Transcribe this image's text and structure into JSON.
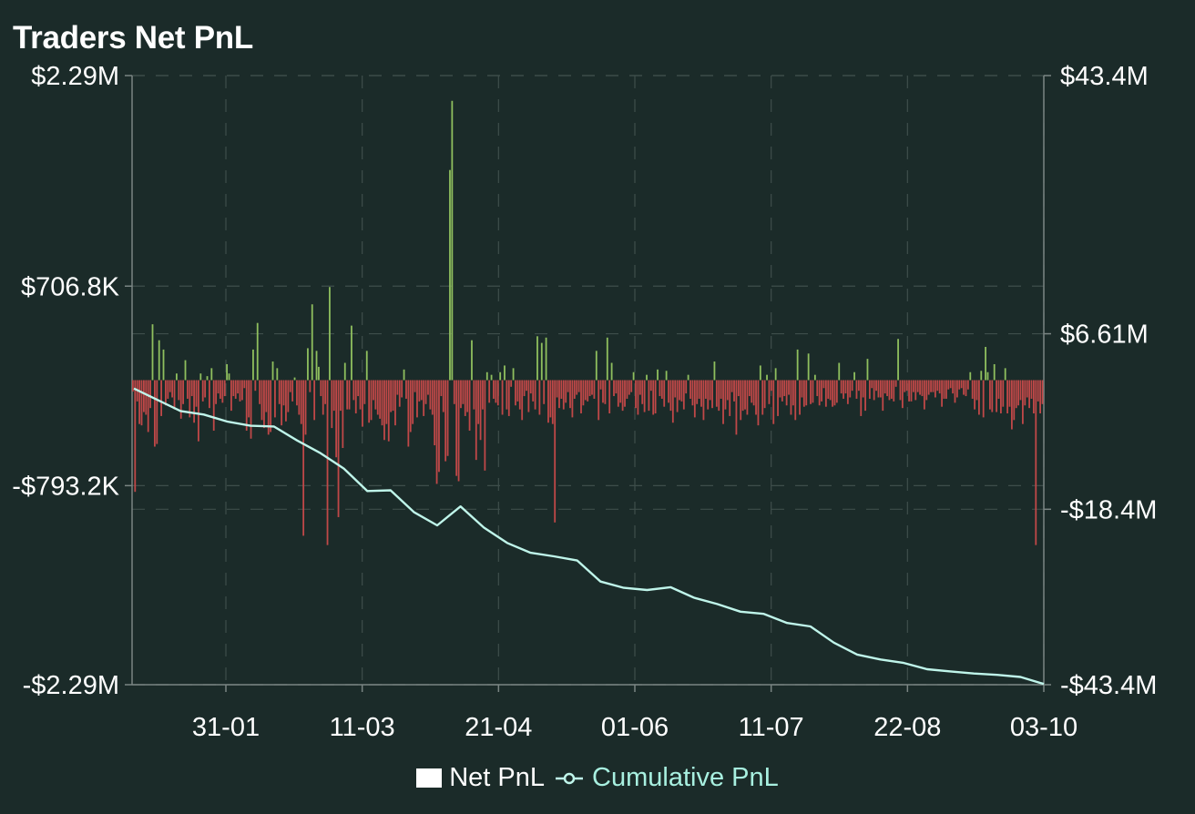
{
  "title": "Traders Net PnL",
  "colors": {
    "background": "#1b2b29",
    "positive_bar": "#8fbf5e",
    "negative_bar": "#c04848",
    "cumulative_line": "#bff5ea",
    "grid": "#3e4e4b",
    "axis": "#7a8583"
  },
  "legend": {
    "net_label": "Net PnL",
    "cumulative_label": "Cumulative PnL"
  },
  "chart_data": {
    "type": "bar",
    "x_ticks": [
      "31-01",
      "11-03",
      "21-04",
      "01-06",
      "11-07",
      "22-08",
      "03-10"
    ],
    "left_axis": {
      "tick_labels": [
        "$2.29M",
        "$706.8K",
        "-$793.2K",
        "-$2.29M"
      ],
      "tick_values": [
        2290000,
        706800,
        -793200,
        -2290000
      ],
      "ylim": [
        -2290000,
        2290000
      ]
    },
    "right_axis": {
      "tick_labels": [
        "$43.4M",
        "$6.61M",
        "-$18.4M",
        "-$43.4M"
      ],
      "tick_values": [
        43400000,
        6610000,
        -18400000,
        -43400000
      ],
      "ylim": [
        -43400000,
        43400000
      ]
    },
    "grid": true,
    "legend_position": "bottom-center",
    "series": [
      {
        "name": "Net PnL",
        "type": "bar",
        "axis": "left",
        "values": [
          -85000,
          -840000,
          -160000,
          -330000,
          -340000,
          -240000,
          -260000,
          -390000,
          -210000,
          420000,
          -500000,
          -480000,
          300000,
          -270000,
          230000,
          -190000,
          -140000,
          -90000,
          -130000,
          -220000,
          50000,
          -150000,
          -290000,
          -180000,
          150000,
          -140000,
          -280000,
          -120000,
          -320000,
          -200000,
          -460000,
          50000,
          -160000,
          -130000,
          30000,
          -210000,
          90000,
          -380000,
          -180000,
          -100000,
          -140000,
          -170000,
          -120000,
          120000,
          50000,
          -230000,
          -120000,
          -140000,
          -100000,
          -160000,
          -150000,
          -60000,
          -380000,
          -280000,
          -440000,
          230000,
          -80000,
          430000,
          -180000,
          -300000,
          -360000,
          -240000,
          -410000,
          -390000,
          140000,
          -280000,
          90000,
          -180000,
          -340000,
          -190000,
          -310000,
          -240000,
          -90000,
          -160000,
          20000,
          -190000,
          -260000,
          -330000,
          -1170000,
          -410000,
          240000,
          -90000,
          570000,
          -300000,
          220000,
          100000,
          -120000,
          -260000,
          -180000,
          -1240000,
          700000,
          -360000,
          -230000,
          -580000,
          -1030000,
          -230000,
          -510000,
          130000,
          -220000,
          -220000,
          410000,
          -150000,
          -250000,
          -120000,
          -220000,
          -350000,
          -180000,
          220000,
          -320000,
          -300000,
          -150000,
          -220000,
          -260000,
          -290000,
          -340000,
          -450000,
          -330000,
          -460000,
          -240000,
          -230000,
          -340000,
          -110000,
          -200000,
          -130000,
          80000,
          -140000,
          -500000,
          -390000,
          -330000,
          -90000,
          -280000,
          -160000,
          -150000,
          -270000,
          -180000,
          -110000,
          -220000,
          -260000,
          -490000,
          -780000,
          -690000,
          -120000,
          -240000,
          -610000,
          -570000,
          1580000,
          2100000,
          -180000,
          -720000,
          -760000,
          -210000,
          -180000,
          -270000,
          -240000,
          -380000,
          300000,
          -220000,
          -600000,
          -330000,
          -450000,
          -220000,
          -680000,
          60000,
          -170000,
          40000,
          -140000,
          -170000,
          -190000,
          60000,
          -260000,
          110000,
          -220000,
          -270000,
          -50000,
          90000,
          -190000,
          -160000,
          -220000,
          -300000,
          -120000,
          -80000,
          -240000,
          -100000,
          -160000,
          -220000,
          330000,
          -260000,
          280000,
          -180000,
          320000,
          -320000,
          -280000,
          -330000,
          -1070000,
          -130000,
          -210000,
          -140000,
          -220000,
          -170000,
          -90000,
          -210000,
          -280000,
          -140000,
          -110000,
          -90000,
          -250000,
          -190000,
          -150000,
          -160000,
          -120000,
          -110000,
          -140000,
          220000,
          -300000,
          -70000,
          -170000,
          -180000,
          320000,
          -250000,
          130000,
          -120000,
          -100000,
          -200000,
          -170000,
          -230000,
          -200000,
          -140000,
          -110000,
          -90000,
          60000,
          -210000,
          -260000,
          -110000,
          -180000,
          -240000,
          40000,
          -230000,
          -80000,
          -260000,
          -250000,
          80000,
          -120000,
          -140000,
          -200000,
          70000,
          -170000,
          -230000,
          -320000,
          -130000,
          -240000,
          -150000,
          -160000,
          -220000,
          -100000,
          40000,
          -140000,
          -190000,
          -280000,
          -180000,
          -140000,
          -200000,
          -300000,
          -140000,
          -220000,
          -150000,
          -210000,
          140000,
          -200000,
          -230000,
          -140000,
          -330000,
          -220000,
          -150000,
          -270000,
          -90000,
          -160000,
          -410000,
          -120000,
          -300000,
          -230000,
          -220000,
          -260000,
          -120000,
          -170000,
          -190000,
          -260000,
          -340000,
          110000,
          -260000,
          -210000,
          40000,
          -180000,
          -80000,
          -330000,
          90000,
          -270000,
          -130000,
          -160000,
          -120000,
          -190000,
          -110000,
          -260000,
          -190000,
          -300000,
          230000,
          -260000,
          -130000,
          -200000,
          -190000,
          200000,
          -180000,
          -170000,
          40000,
          -120000,
          -190000,
          -160000,
          -60000,
          -200000,
          -140000,
          -150000,
          -200000,
          -190000,
          -170000,
          130000,
          -100000,
          -140000,
          -100000,
          -180000,
          -130000,
          -80000,
          60000,
          -140000,
          -80000,
          -270000,
          -130000,
          -230000,
          160000,
          -140000,
          -60000,
          -150000,
          -80000,
          -130000,
          -130000,
          -230000,
          -100000,
          -120000,
          -150000,
          -140000,
          -160000,
          -50000,
          310000,
          -150000,
          -210000,
          -90000,
          -80000,
          -160000,
          -160000,
          -90000,
          -150000,
          -90000,
          -110000,
          -120000,
          -220000,
          -150000,
          -110000,
          -90000,
          -90000,
          -130000,
          -80000,
          -100000,
          -200000,
          -140000,
          -140000,
          -70000,
          -60000,
          -100000,
          -170000,
          -130000,
          -70000,
          -60000,
          -110000,
          -120000,
          -70000,
          60000,
          -140000,
          -220000,
          -150000,
          -260000,
          70000,
          -280000,
          250000,
          60000,
          -220000,
          -240000,
          120000,
          -240000,
          -140000,
          -250000,
          -200000,
          90000,
          -250000,
          -200000,
          -370000,
          -300000,
          -210000,
          -190000,
          -150000,
          -330000,
          -190000,
          -130000,
          -210000,
          -140000,
          -250000,
          -1240000,
          -160000,
          -250000,
          -180000
        ]
      },
      {
        "name": "Cumulative PnL",
        "type": "line",
        "axis": "right",
        "points": [
          {
            "x": "Jan 06",
            "y": -1200000
          },
          {
            "x": "Jan 13",
            "y": -2800000
          },
          {
            "x": "Jan 20",
            "y": -4400000
          },
          {
            "x": "Jan 27",
            "y": -4900000
          },
          {
            "x": "Feb 03",
            "y": -5900000
          },
          {
            "x": "Feb 10",
            "y": -6500000
          },
          {
            "x": "Feb 17",
            "y": -6600000
          },
          {
            "x": "Feb 24",
            "y": -8600000
          },
          {
            "x": "Mar 02",
            "y": -10400000
          },
          {
            "x": "Mar 09",
            "y": -12600000
          },
          {
            "x": "Mar 16",
            "y": -15800000
          },
          {
            "x": "Mar 23",
            "y": -15700000
          },
          {
            "x": "Mar 30",
            "y": -18800000
          },
          {
            "x": "Apr 06",
            "y": -20700000
          },
          {
            "x": "Apr 13",
            "y": -18000000
          },
          {
            "x": "Apr 20",
            "y": -21000000
          },
          {
            "x": "Apr 27",
            "y": -23200000
          },
          {
            "x": "May 04",
            "y": -24600000
          },
          {
            "x": "May 11",
            "y": -25100000
          },
          {
            "x": "May 18",
            "y": -25700000
          },
          {
            "x": "May 25",
            "y": -28700000
          },
          {
            "x": "Jun 01",
            "y": -29600000
          },
          {
            "x": "Jun 08",
            "y": -29900000
          },
          {
            "x": "Jun 15",
            "y": -29500000
          },
          {
            "x": "Jun 22",
            "y": -31000000
          },
          {
            "x": "Jun 29",
            "y": -31900000
          },
          {
            "x": "Jul 06",
            "y": -33000000
          },
          {
            "x": "Jul 13",
            "y": -33300000
          },
          {
            "x": "Jul 20",
            "y": -34600000
          },
          {
            "x": "Jul 27",
            "y": -35100000
          },
          {
            "x": "Aug 03",
            "y": -37400000
          },
          {
            "x": "Aug 10",
            "y": -39100000
          },
          {
            "x": "Aug 17",
            "y": -39800000
          },
          {
            "x": "Aug 24",
            "y": -40300000
          },
          {
            "x": "Aug 31",
            "y": -41200000
          },
          {
            "x": "Sep 07",
            "y": -41500000
          },
          {
            "x": "Sep 14",
            "y": -41800000
          },
          {
            "x": "Sep 21",
            "y": -42000000
          },
          {
            "x": "Sep 28",
            "y": -42300000
          },
          {
            "x": "Oct 03",
            "y": -43300000
          }
        ]
      }
    ]
  }
}
